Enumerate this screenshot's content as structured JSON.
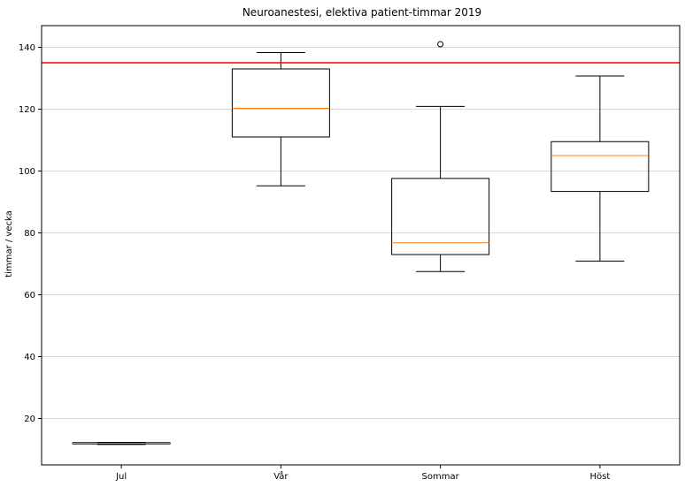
{
  "chart_data": {
    "type": "boxplot",
    "title": "Neuroanestesi, elektiva patient-timmar 2019",
    "xlabel": "",
    "ylabel": "timmar / vecka",
    "categories": [
      "Jul",
      "Vår",
      "Sommar",
      "Höst"
    ],
    "ylim": [
      5,
      147
    ],
    "yticks": [
      20,
      40,
      60,
      80,
      100,
      120,
      140
    ],
    "grid": "horizontal",
    "boxes": [
      {
        "category": "Jul",
        "whisker_low": 11.6,
        "q1": 11.8,
        "median": 12.0,
        "q3": 12.2,
        "whisker_high": 12.3,
        "outliers": []
      },
      {
        "category": "Vår",
        "whisker_low": 95.2,
        "q1": 111.0,
        "median": 120.3,
        "q3": 133.0,
        "whisker_high": 138.3,
        "outliers": []
      },
      {
        "category": "Sommar",
        "whisker_low": 67.5,
        "q1": 73.0,
        "median": 76.8,
        "q3": 97.6,
        "whisker_high": 120.9,
        "outliers": [
          141.0
        ]
      },
      {
        "category": "Höst",
        "whisker_low": 70.9,
        "q1": 93.4,
        "median": 105.0,
        "q3": 109.5,
        "whisker_high": 130.7,
        "outliers": []
      }
    ],
    "reference_line": {
      "value": 135.0,
      "color": "#ff0000"
    },
    "colors": {
      "box": "#000000",
      "median": "#ff7f0e",
      "grid": "#d9d9d9"
    }
  }
}
